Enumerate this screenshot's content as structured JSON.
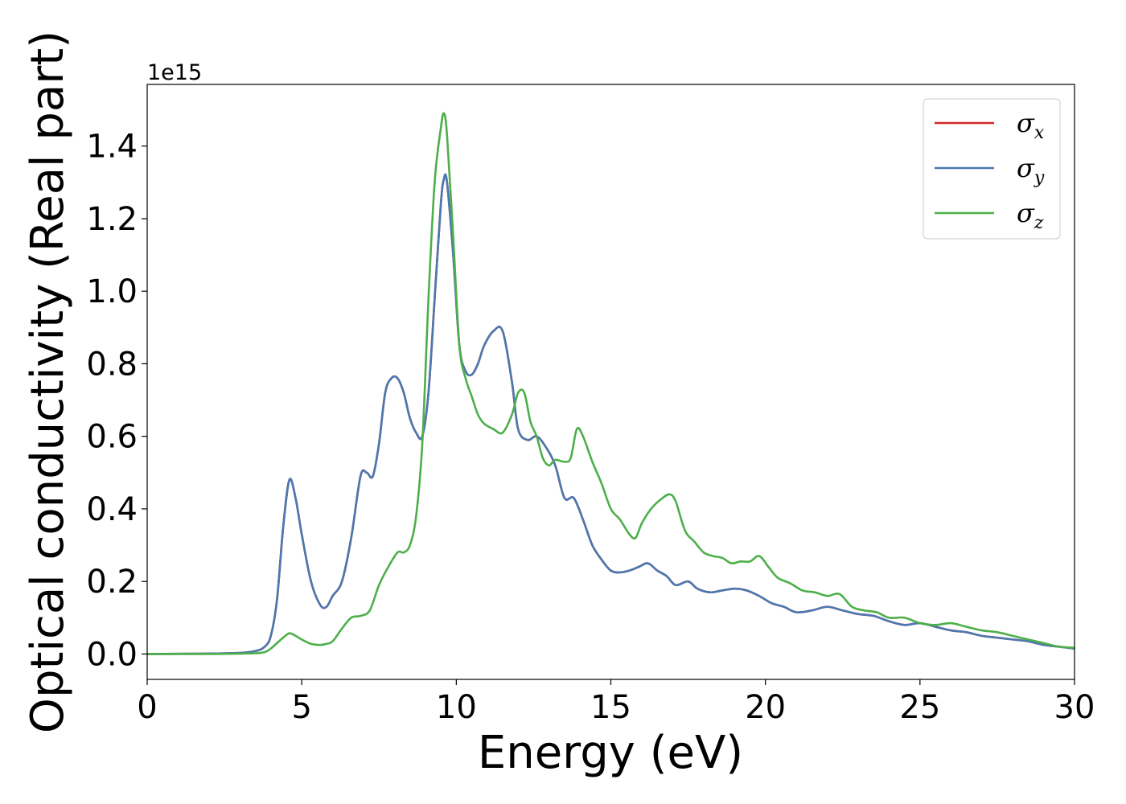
{
  "chart_data": {
    "type": "line",
    "xlabel": "Energy (eV)",
    "ylabel": "Optical conductivity (Real part)",
    "y_offset_label": "1e15",
    "xlim": [
      0,
      30
    ],
    "ylim": [
      -0.07,
      1.57
    ],
    "y_scale_factor": 1000000000000000.0,
    "x_ticks": [
      0,
      5,
      10,
      15,
      20,
      25,
      30
    ],
    "x_tick_labels": [
      "0",
      "5",
      "10",
      "15",
      "20",
      "25",
      "30"
    ],
    "y_ticks": [
      0.0,
      0.2,
      0.4,
      0.6,
      0.8,
      1.0,
      1.2,
      1.4
    ],
    "y_tick_labels": [
      "0.0",
      "0.2",
      "0.4",
      "0.6",
      "0.8",
      "1.0",
      "1.2",
      "1.4"
    ],
    "grid": false,
    "legend_position": "top-right",
    "colors": {
      "sigma_x": "#d62728",
      "sigma_y": "#4a78b0",
      "sigma_z": "#4daf4a"
    },
    "series": [
      {
        "name": "σx",
        "legend_symbol": "σ",
        "legend_subscript": "x",
        "color_key": "sigma_x",
        "x": [
          0,
          2,
          3,
          3.5,
          3.8,
          4.0,
          4.2,
          4.4,
          4.6,
          4.8,
          5.0,
          5.3,
          5.6,
          5.8,
          6.0,
          6.3,
          6.6,
          6.9,
          7.1,
          7.3,
          7.5,
          7.7,
          7.9,
          8.1,
          8.3,
          8.5,
          8.7,
          8.9,
          9.1,
          9.3,
          9.5,
          9.6,
          9.7,
          9.9,
          10.1,
          10.3,
          10.5,
          10.7,
          10.9,
          11.2,
          11.5,
          11.8,
          12.0,
          12.3,
          12.6,
          12.9,
          13.2,
          13.5,
          13.8,
          14.1,
          14.4,
          14.7,
          15.0,
          15.3,
          15.6,
          15.9,
          16.2,
          16.5,
          16.8,
          17.1,
          17.5,
          17.8,
          18.2,
          18.6,
          19.0,
          19.4,
          19.8,
          20.2,
          20.6,
          21.0,
          21.5,
          22.0,
          22.5,
          23.0,
          23.5,
          24.0,
          24.5,
          25.0,
          25.5,
          26.0,
          26.5,
          27.0,
          27.5,
          28.0,
          28.5,
          29.0,
          29.5,
          30.0
        ],
        "y": [
          0.0,
          0.001,
          0.003,
          0.008,
          0.02,
          0.05,
          0.15,
          0.35,
          0.48,
          0.43,
          0.33,
          0.2,
          0.135,
          0.13,
          0.16,
          0.2,
          0.32,
          0.49,
          0.5,
          0.49,
          0.58,
          0.72,
          0.76,
          0.76,
          0.72,
          0.65,
          0.61,
          0.6,
          0.72,
          0.98,
          1.24,
          1.31,
          1.3,
          1.1,
          0.85,
          0.78,
          0.77,
          0.8,
          0.85,
          0.89,
          0.89,
          0.75,
          0.62,
          0.59,
          0.6,
          0.57,
          0.52,
          0.43,
          0.43,
          0.37,
          0.3,
          0.26,
          0.23,
          0.225,
          0.23,
          0.24,
          0.25,
          0.23,
          0.215,
          0.19,
          0.2,
          0.18,
          0.17,
          0.175,
          0.18,
          0.175,
          0.16,
          0.14,
          0.13,
          0.115,
          0.12,
          0.13,
          0.12,
          0.11,
          0.105,
          0.09,
          0.08,
          0.085,
          0.075,
          0.065,
          0.06,
          0.05,
          0.045,
          0.04,
          0.035,
          0.025,
          0.02,
          0.015
        ]
      },
      {
        "name": "σy",
        "legend_symbol": "σ",
        "legend_subscript": "y",
        "color_key": "sigma_y",
        "x": [
          0,
          2,
          3,
          3.5,
          3.8,
          4.0,
          4.2,
          4.4,
          4.6,
          4.8,
          5.0,
          5.3,
          5.6,
          5.8,
          6.0,
          6.3,
          6.6,
          6.9,
          7.1,
          7.3,
          7.5,
          7.7,
          7.9,
          8.1,
          8.3,
          8.5,
          8.7,
          8.9,
          9.1,
          9.3,
          9.5,
          9.6,
          9.7,
          9.9,
          10.1,
          10.3,
          10.5,
          10.7,
          10.9,
          11.2,
          11.5,
          11.8,
          12.0,
          12.3,
          12.6,
          12.9,
          13.2,
          13.5,
          13.8,
          14.1,
          14.4,
          14.7,
          15.0,
          15.3,
          15.6,
          15.9,
          16.2,
          16.5,
          16.8,
          17.1,
          17.5,
          17.8,
          18.2,
          18.6,
          19.0,
          19.4,
          19.8,
          20.2,
          20.6,
          21.0,
          21.5,
          22.0,
          22.5,
          23.0,
          23.5,
          24.0,
          24.5,
          25.0,
          25.5,
          26.0,
          26.5,
          27.0,
          27.5,
          28.0,
          28.5,
          29.0,
          29.5,
          30.0
        ],
        "y": [
          0.0,
          0.001,
          0.003,
          0.008,
          0.02,
          0.05,
          0.15,
          0.35,
          0.48,
          0.43,
          0.33,
          0.2,
          0.135,
          0.13,
          0.16,
          0.2,
          0.32,
          0.49,
          0.5,
          0.49,
          0.58,
          0.72,
          0.76,
          0.76,
          0.72,
          0.65,
          0.61,
          0.6,
          0.72,
          0.98,
          1.24,
          1.31,
          1.3,
          1.1,
          0.85,
          0.78,
          0.77,
          0.8,
          0.85,
          0.89,
          0.89,
          0.75,
          0.62,
          0.59,
          0.6,
          0.57,
          0.52,
          0.43,
          0.43,
          0.37,
          0.3,
          0.26,
          0.23,
          0.225,
          0.23,
          0.24,
          0.25,
          0.23,
          0.215,
          0.19,
          0.2,
          0.18,
          0.17,
          0.175,
          0.18,
          0.175,
          0.16,
          0.14,
          0.13,
          0.115,
          0.12,
          0.13,
          0.12,
          0.11,
          0.105,
          0.09,
          0.08,
          0.085,
          0.075,
          0.065,
          0.06,
          0.05,
          0.045,
          0.04,
          0.035,
          0.025,
          0.02,
          0.015
        ]
      },
      {
        "name": "σz",
        "legend_symbol": "σ",
        "legend_subscript": "z",
        "color_key": "sigma_z",
        "x": [
          0,
          2,
          3,
          3.5,
          3.8,
          4.0,
          4.2,
          4.4,
          4.6,
          4.8,
          5.0,
          5.3,
          5.6,
          5.8,
          6.0,
          6.3,
          6.6,
          6.9,
          7.2,
          7.5,
          7.8,
          8.1,
          8.3,
          8.5,
          8.7,
          8.9,
          9.1,
          9.3,
          9.5,
          9.6,
          9.7,
          9.9,
          10.1,
          10.3,
          10.5,
          10.7,
          10.9,
          11.2,
          11.5,
          11.8,
          12.0,
          12.2,
          12.4,
          12.6,
          12.8,
          13.0,
          13.2,
          13.5,
          13.7,
          13.9,
          14.1,
          14.4,
          14.7,
          15.0,
          15.3,
          15.6,
          15.8,
          16.0,
          16.3,
          16.6,
          16.9,
          17.1,
          17.4,
          17.7,
          18.0,
          18.3,
          18.6,
          18.9,
          19.2,
          19.5,
          19.8,
          20.1,
          20.4,
          20.8,
          21.2,
          21.6,
          22.0,
          22.4,
          22.8,
          23.2,
          23.6,
          24.0,
          24.5,
          25.0,
          25.5,
          26.0,
          26.5,
          27.0,
          27.5,
          28.0,
          28.5,
          29.0,
          29.5,
          30.0
        ],
        "y": [
          0.0,
          0.0,
          0.001,
          0.002,
          0.005,
          0.015,
          0.03,
          0.045,
          0.057,
          0.05,
          0.04,
          0.028,
          0.025,
          0.028,
          0.035,
          0.07,
          0.1,
          0.105,
          0.12,
          0.19,
          0.24,
          0.28,
          0.28,
          0.3,
          0.38,
          0.58,
          0.98,
          1.3,
          1.45,
          1.49,
          1.43,
          1.15,
          0.85,
          0.76,
          0.71,
          0.66,
          0.635,
          0.62,
          0.61,
          0.66,
          0.72,
          0.72,
          0.64,
          0.6,
          0.54,
          0.52,
          0.535,
          0.53,
          0.54,
          0.62,
          0.6,
          0.53,
          0.47,
          0.4,
          0.37,
          0.33,
          0.32,
          0.36,
          0.4,
          0.425,
          0.44,
          0.42,
          0.34,
          0.31,
          0.28,
          0.27,
          0.265,
          0.25,
          0.255,
          0.255,
          0.27,
          0.24,
          0.21,
          0.195,
          0.175,
          0.17,
          0.16,
          0.165,
          0.13,
          0.12,
          0.115,
          0.1,
          0.1,
          0.085,
          0.08,
          0.085,
          0.075,
          0.065,
          0.06,
          0.05,
          0.04,
          0.03,
          0.02,
          0.017
        ]
      }
    ]
  }
}
